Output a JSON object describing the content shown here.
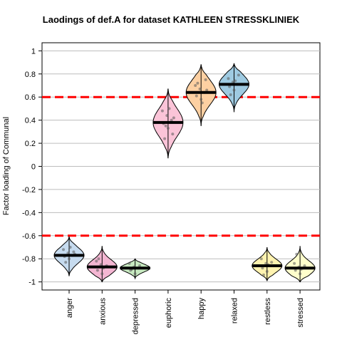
{
  "chart_data": {
    "type": "violin",
    "title": "Laodings of def.A for dataset KATHLEEN STRESSKLINIEK",
    "xlabel": "",
    "ylabel": "Factor loading of Communal",
    "ylim": [
      -1.07,
      1.07
    ],
    "yticks": [
      1,
      0.8,
      0.6,
      0.4,
      0.2,
      0,
      -0.2,
      -0.4,
      -0.6,
      -0.8,
      -1
    ],
    "ytick_labels": [
      "1",
      "0.8",
      "0.6",
      "0.4",
      "0.2",
      "0",
      "-0.2",
      "-0.4",
      "-0.6",
      "-0.8",
      "-1"
    ],
    "grid": true,
    "reference_lines": [
      {
        "y": 0.6,
        "color": "#ff0000",
        "style": "dashed"
      },
      {
        "y": -0.6,
        "color": "#ff0000",
        "style": "dashed"
      }
    ],
    "categories": [
      "anger",
      "anxious",
      "depressed",
      "euphoric",
      "happy",
      "relaxed",
      "restless",
      "stressed"
    ],
    "series": [
      {
        "category": "anger",
        "median": -0.77,
        "min": -0.95,
        "max": -0.61,
        "color": "#c6dbef",
        "points": [
          -0.72,
          -0.75,
          -0.77,
          -0.78,
          -0.8,
          -0.74,
          -0.83,
          -0.7,
          -0.76
        ]
      },
      {
        "category": "anxious",
        "median": -0.87,
        "min": -1.0,
        "max": -0.69,
        "color": "#f4b6d2",
        "points": [
          -0.82,
          -0.85,
          -0.87,
          -0.9,
          -0.93,
          -0.86,
          -0.8,
          -0.88
        ]
      },
      {
        "category": "depressed",
        "median": -0.88,
        "min": -0.97,
        "max": -0.8,
        "color": "#c7e9c0",
        "points": [
          -0.84,
          -0.87,
          -0.88,
          -0.9,
          -0.93,
          -0.86,
          -0.89
        ]
      },
      {
        "category": "euphoric",
        "median": 0.38,
        "min": 0.07,
        "max": 0.67,
        "color": "#fbc4d8",
        "points": [
          0.48,
          0.44,
          0.4,
          0.37,
          0.33,
          0.28,
          0.24,
          0.5,
          0.42,
          0.35
        ]
      },
      {
        "category": "happy",
        "median": 0.64,
        "min": 0.35,
        "max": 0.88,
        "color": "#fdd0a2",
        "points": [
          0.7,
          0.67,
          0.64,
          0.61,
          0.58,
          0.75,
          0.72,
          0.55,
          0.66
        ]
      },
      {
        "category": "relaxed",
        "median": 0.71,
        "min": 0.47,
        "max": 0.89,
        "color": "#9ecae1",
        "points": [
          0.76,
          0.73,
          0.71,
          0.69,
          0.66,
          0.79,
          0.62,
          0.74
        ]
      },
      {
        "category": "restless",
        "median": -0.86,
        "min": -0.99,
        "max": -0.7,
        "color": "#fff3b0",
        "points": [
          -0.8,
          -0.84,
          -0.86,
          -0.88,
          -0.91,
          -0.83,
          -0.94,
          -0.85
        ]
      },
      {
        "category": "stressed",
        "median": -0.88,
        "min": -1.0,
        "max": -0.69,
        "color": "#ffffcc",
        "points": [
          -0.84,
          -0.87,
          -0.88,
          -0.9,
          -0.93,
          -0.86,
          -0.76,
          -0.89
        ]
      }
    ]
  }
}
